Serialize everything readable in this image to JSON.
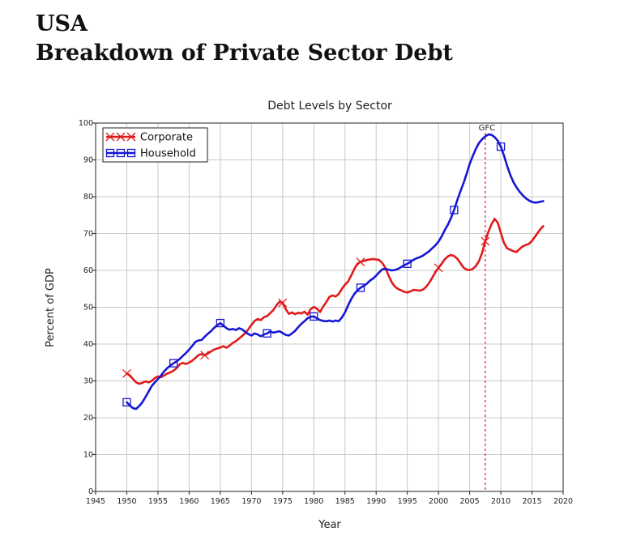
{
  "heading": {
    "line1": "USA",
    "line2": "Breakdown of Private Sector Debt"
  },
  "chart_data": {
    "type": "line",
    "title": "Debt Levels by Sector",
    "xlabel": "Year",
    "ylabel": "Percent of GDP",
    "xlim": [
      1945,
      2020
    ],
    "ylim": [
      0,
      100
    ],
    "x_ticks": [
      "1945",
      "1950",
      "1955",
      "1960",
      "1965",
      "1970",
      "1975",
      "1980",
      "1985",
      "1990",
      "1995",
      "2000",
      "2005",
      "2010",
      "2015",
      "2020"
    ],
    "y_ticks": [
      "0",
      "10",
      "20",
      "30",
      "40",
      "50",
      "60",
      "70",
      "80",
      "90",
      "100"
    ],
    "grid": true,
    "legend_position": "top-left",
    "annotations": [
      {
        "label": "GFC",
        "x": 2007.5,
        "style": "dashed-vertical-line",
        "color": "#d42020"
      }
    ],
    "series": [
      {
        "name": "Corporate",
        "color": "#e01b1b",
        "marker": "x",
        "marker_x": [
          1950,
          1962.5,
          1975,
          1987.5,
          2000,
          2007.5
        ],
        "points": [
          [
            1950.0,
            32.0
          ],
          [
            1950.5,
            31.5
          ],
          [
            1951.0,
            30.5
          ],
          [
            1951.5,
            29.6
          ],
          [
            1952.0,
            29.2
          ],
          [
            1952.5,
            29.5
          ],
          [
            1953.0,
            29.9
          ],
          [
            1953.5,
            29.6
          ],
          [
            1954.0,
            30.0
          ],
          [
            1954.5,
            30.8
          ],
          [
            1955.0,
            31.2
          ],
          [
            1955.5,
            31.0
          ],
          [
            1956.0,
            31.5
          ],
          [
            1956.5,
            32.0
          ],
          [
            1957.0,
            32.3
          ],
          [
            1957.5,
            32.8
          ],
          [
            1958.0,
            33.5
          ],
          [
            1958.5,
            34.5
          ],
          [
            1959.0,
            34.9
          ],
          [
            1959.5,
            34.6
          ],
          [
            1960.0,
            35.0
          ],
          [
            1960.5,
            35.5
          ],
          [
            1961.0,
            36.2
          ],
          [
            1961.5,
            37.0
          ],
          [
            1962.0,
            37.3
          ],
          [
            1962.5,
            37.0
          ],
          [
            1963.0,
            37.4
          ],
          [
            1963.5,
            38.0
          ],
          [
            1964.0,
            38.5
          ],
          [
            1964.5,
            38.8
          ],
          [
            1965.0,
            39.1
          ],
          [
            1965.5,
            39.4
          ],
          [
            1966.0,
            39.0
          ],
          [
            1966.5,
            39.6
          ],
          [
            1967.0,
            40.3
          ],
          [
            1967.5,
            40.8
          ],
          [
            1968.0,
            41.5
          ],
          [
            1968.5,
            42.2
          ],
          [
            1969.0,
            43.0
          ],
          [
            1969.5,
            44.0
          ],
          [
            1970.0,
            45.2
          ],
          [
            1970.5,
            46.3
          ],
          [
            1971.0,
            46.8
          ],
          [
            1971.5,
            46.5
          ],
          [
            1972.0,
            47.3
          ],
          [
            1972.5,
            47.6
          ],
          [
            1973.0,
            48.4
          ],
          [
            1973.5,
            49.2
          ],
          [
            1974.0,
            50.5
          ],
          [
            1974.5,
            51.5
          ],
          [
            1975.0,
            51.2
          ],
          [
            1975.5,
            49.5
          ],
          [
            1976.0,
            48.2
          ],
          [
            1976.5,
            48.6
          ],
          [
            1977.0,
            48.1
          ],
          [
            1977.5,
            48.5
          ],
          [
            1978.0,
            48.3
          ],
          [
            1978.5,
            48.8
          ],
          [
            1979.0,
            48.0
          ],
          [
            1979.5,
            49.5
          ],
          [
            1980.0,
            50.1
          ],
          [
            1980.5,
            49.6
          ],
          [
            1981.0,
            48.7
          ],
          [
            1981.5,
            50.2
          ],
          [
            1982.0,
            51.4
          ],
          [
            1982.5,
            52.8
          ],
          [
            1983.0,
            53.2
          ],
          [
            1983.5,
            52.9
          ],
          [
            1984.0,
            53.6
          ],
          [
            1984.5,
            55.0
          ],
          [
            1985.0,
            56.1
          ],
          [
            1985.5,
            57.0
          ],
          [
            1986.0,
            58.6
          ],
          [
            1986.5,
            60.4
          ],
          [
            1987.0,
            61.8
          ],
          [
            1987.5,
            62.3
          ],
          [
            1988.0,
            62.6
          ],
          [
            1988.5,
            62.8
          ],
          [
            1989.0,
            63.0
          ],
          [
            1989.5,
            63.1
          ],
          [
            1990.0,
            63.0
          ],
          [
            1990.5,
            62.8
          ],
          [
            1991.0,
            62.0
          ],
          [
            1991.5,
            60.6
          ],
          [
            1992.0,
            58.6
          ],
          [
            1992.5,
            56.8
          ],
          [
            1993.0,
            55.6
          ],
          [
            1993.5,
            55.0
          ],
          [
            1994.0,
            54.6
          ],
          [
            1994.5,
            54.2
          ],
          [
            1995.0,
            54.0
          ],
          [
            1995.5,
            54.3
          ],
          [
            1996.0,
            54.7
          ],
          [
            1996.5,
            54.6
          ],
          [
            1997.0,
            54.5
          ],
          [
            1997.5,
            54.8
          ],
          [
            1998.0,
            55.5
          ],
          [
            1998.5,
            56.6
          ],
          [
            1999.0,
            58.0
          ],
          [
            1999.5,
            59.5
          ],
          [
            2000.0,
            60.7
          ],
          [
            2000.5,
            61.8
          ],
          [
            2001.0,
            63.0
          ],
          [
            2001.5,
            63.8
          ],
          [
            2002.0,
            64.2
          ],
          [
            2002.5,
            63.9
          ],
          [
            2003.0,
            63.2
          ],
          [
            2003.5,
            62.0
          ],
          [
            2004.0,
            60.8
          ],
          [
            2004.5,
            60.2
          ],
          [
            2005.0,
            60.1
          ],
          [
            2005.5,
            60.4
          ],
          [
            2006.0,
            61.2
          ],
          [
            2006.5,
            62.5
          ],
          [
            2007.0,
            64.8
          ],
          [
            2007.5,
            67.9
          ],
          [
            2008.0,
            70.5
          ],
          [
            2008.5,
            72.5
          ],
          [
            2009.0,
            74.0
          ],
          [
            2009.5,
            73.0
          ],
          [
            2010.0,
            70.2
          ],
          [
            2010.5,
            67.5
          ],
          [
            2011.0,
            66.0
          ],
          [
            2011.5,
            65.6
          ],
          [
            2012.0,
            65.2
          ],
          [
            2012.5,
            65.0
          ],
          [
            2013.0,
            65.8
          ],
          [
            2013.5,
            66.5
          ],
          [
            2014.0,
            66.9
          ],
          [
            2014.5,
            67.2
          ],
          [
            2015.0,
            68.0
          ],
          [
            2015.5,
            69.2
          ],
          [
            2016.0,
            70.4
          ],
          [
            2016.5,
            71.5
          ],
          [
            2016.8,
            72.0
          ]
        ]
      },
      {
        "name": "Household",
        "color": "#1616d4",
        "marker": "square",
        "marker_x": [
          1950,
          1957.5,
          1965,
          1972.5,
          1980,
          1987.5,
          1995,
          2002.5,
          2010
        ],
        "points": [
          [
            1950.0,
            24.2
          ],
          [
            1950.5,
            23.3
          ],
          [
            1951.0,
            22.6
          ],
          [
            1951.5,
            22.4
          ],
          [
            1952.0,
            23.2
          ],
          [
            1952.5,
            24.2
          ],
          [
            1953.0,
            25.6
          ],
          [
            1953.5,
            27.1
          ],
          [
            1954.0,
            28.6
          ],
          [
            1954.5,
            29.6
          ],
          [
            1955.0,
            30.5
          ],
          [
            1955.5,
            31.5
          ],
          [
            1956.0,
            32.6
          ],
          [
            1956.5,
            33.5
          ],
          [
            1957.0,
            34.2
          ],
          [
            1957.5,
            34.8
          ],
          [
            1958.0,
            35.3
          ],
          [
            1958.5,
            36.0
          ],
          [
            1959.0,
            36.8
          ],
          [
            1959.5,
            37.6
          ],
          [
            1960.0,
            38.5
          ],
          [
            1960.5,
            39.5
          ],
          [
            1961.0,
            40.6
          ],
          [
            1961.5,
            41.0
          ],
          [
            1962.0,
            41.1
          ],
          [
            1962.5,
            42.0
          ],
          [
            1963.0,
            42.8
          ],
          [
            1963.5,
            43.5
          ],
          [
            1964.0,
            44.4
          ],
          [
            1964.5,
            45.1
          ],
          [
            1965.0,
            45.7
          ],
          [
            1965.5,
            45.0
          ],
          [
            1966.0,
            44.3
          ],
          [
            1966.5,
            43.9
          ],
          [
            1967.0,
            44.1
          ],
          [
            1967.5,
            43.8
          ],
          [
            1968.0,
            44.3
          ],
          [
            1968.5,
            44.0
          ],
          [
            1969.0,
            43.3
          ],
          [
            1969.5,
            42.7
          ],
          [
            1970.0,
            42.3
          ],
          [
            1970.5,
            42.9
          ],
          [
            1971.0,
            42.6
          ],
          [
            1971.5,
            42.1
          ],
          [
            1972.0,
            42.6
          ],
          [
            1972.5,
            42.9
          ],
          [
            1973.0,
            43.4
          ],
          [
            1973.5,
            43.1
          ],
          [
            1974.0,
            43.3
          ],
          [
            1974.5,
            43.5
          ],
          [
            1975.0,
            43.0
          ],
          [
            1975.5,
            42.5
          ],
          [
            1976.0,
            42.3
          ],
          [
            1976.5,
            42.9
          ],
          [
            1977.0,
            43.6
          ],
          [
            1977.5,
            44.6
          ],
          [
            1978.0,
            45.5
          ],
          [
            1978.5,
            46.2
          ],
          [
            1979.0,
            47.0
          ],
          [
            1979.5,
            47.4
          ],
          [
            1980.0,
            47.5
          ],
          [
            1980.5,
            47.0
          ],
          [
            1981.0,
            46.5
          ],
          [
            1981.5,
            46.3
          ],
          [
            1982.0,
            46.2
          ],
          [
            1982.5,
            46.4
          ],
          [
            1983.0,
            46.1
          ],
          [
            1983.5,
            46.4
          ],
          [
            1984.0,
            46.2
          ],
          [
            1984.5,
            47.2
          ],
          [
            1985.0,
            48.6
          ],
          [
            1985.5,
            50.5
          ],
          [
            1986.0,
            52.2
          ],
          [
            1986.5,
            53.6
          ],
          [
            1987.0,
            54.6
          ],
          [
            1987.5,
            55.3
          ],
          [
            1988.0,
            55.8
          ],
          [
            1988.5,
            56.4
          ],
          [
            1989.0,
            57.2
          ],
          [
            1989.5,
            57.8
          ],
          [
            1990.0,
            58.6
          ],
          [
            1990.5,
            59.5
          ],
          [
            1991.0,
            60.3
          ],
          [
            1991.5,
            60.4
          ],
          [
            1992.0,
            60.2
          ],
          [
            1992.5,
            60.0
          ],
          [
            1993.0,
            60.1
          ],
          [
            1993.5,
            60.4
          ],
          [
            1994.0,
            60.9
          ],
          [
            1994.5,
            61.4
          ],
          [
            1995.0,
            61.8
          ],
          [
            1995.5,
            62.3
          ],
          [
            1996.0,
            62.9
          ],
          [
            1996.5,
            63.3
          ],
          [
            1997.0,
            63.6
          ],
          [
            1997.5,
            64.0
          ],
          [
            1998.0,
            64.6
          ],
          [
            1998.5,
            65.2
          ],
          [
            1999.0,
            66.0
          ],
          [
            1999.5,
            66.8
          ],
          [
            2000.0,
            67.8
          ],
          [
            2000.5,
            69.2
          ],
          [
            2001.0,
            70.9
          ],
          [
            2001.5,
            72.4
          ],
          [
            2002.0,
            74.2
          ],
          [
            2002.5,
            76.4
          ],
          [
            2003.0,
            79.0
          ],
          [
            2003.5,
            81.4
          ],
          [
            2004.0,
            83.6
          ],
          [
            2004.5,
            86.2
          ],
          [
            2005.0,
            88.9
          ],
          [
            2005.5,
            91.0
          ],
          [
            2006.0,
            93.0
          ],
          [
            2006.5,
            94.6
          ],
          [
            2007.0,
            95.6
          ],
          [
            2007.5,
            96.4
          ],
          [
            2008.0,
            96.9
          ],
          [
            2008.5,
            96.8
          ],
          [
            2009.0,
            96.2
          ],
          [
            2009.5,
            95.2
          ],
          [
            2010.0,
            93.6
          ],
          [
            2010.5,
            91.2
          ],
          [
            2011.0,
            88.4
          ],
          [
            2011.5,
            86.0
          ],
          [
            2012.0,
            84.0
          ],
          [
            2012.5,
            82.6
          ],
          [
            2013.0,
            81.4
          ],
          [
            2013.5,
            80.4
          ],
          [
            2014.0,
            79.6
          ],
          [
            2014.5,
            79.0
          ],
          [
            2015.0,
            78.6
          ],
          [
            2015.5,
            78.4
          ],
          [
            2016.0,
            78.5
          ],
          [
            2016.5,
            78.7
          ],
          [
            2016.8,
            78.8
          ]
        ]
      }
    ]
  }
}
